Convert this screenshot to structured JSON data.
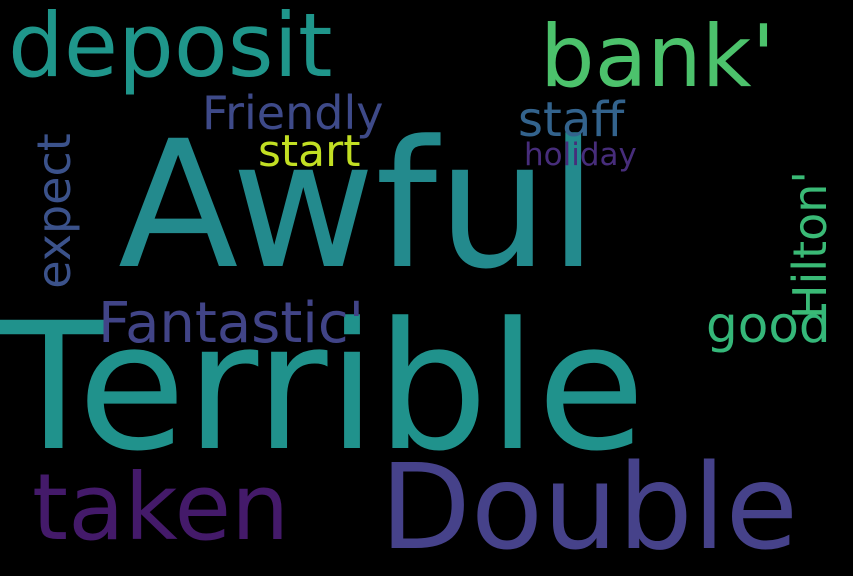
{
  "background_color": "#000000",
  "words": [
    {
      "text": "Awful",
      "color": "#238a8d"
    },
    {
      "text": "Terrible",
      "color": "#20928c"
    },
    {
      "text": "Double",
      "color": "#46428a"
    },
    {
      "text": "deposit",
      "color": "#1f968b"
    },
    {
      "text": "bank'",
      "color": "#4cc26c"
    },
    {
      "text": "taken",
      "color": "#441a6a"
    },
    {
      "text": "Fantastic'",
      "color": "#414487"
    },
    {
      "text": "Friendly",
      "color": "#3e4a89"
    },
    {
      "text": "staff",
      "color": "#33638d"
    },
    {
      "text": "start",
      "color": "#c2df23"
    },
    {
      "text": "holiday",
      "color": "#472d7b"
    },
    {
      "text": "Hilton'",
      "color": "#3aba76"
    },
    {
      "text": "expect",
      "color": "#3b528b"
    },
    {
      "text": "good",
      "color": "#35b779"
    }
  ]
}
